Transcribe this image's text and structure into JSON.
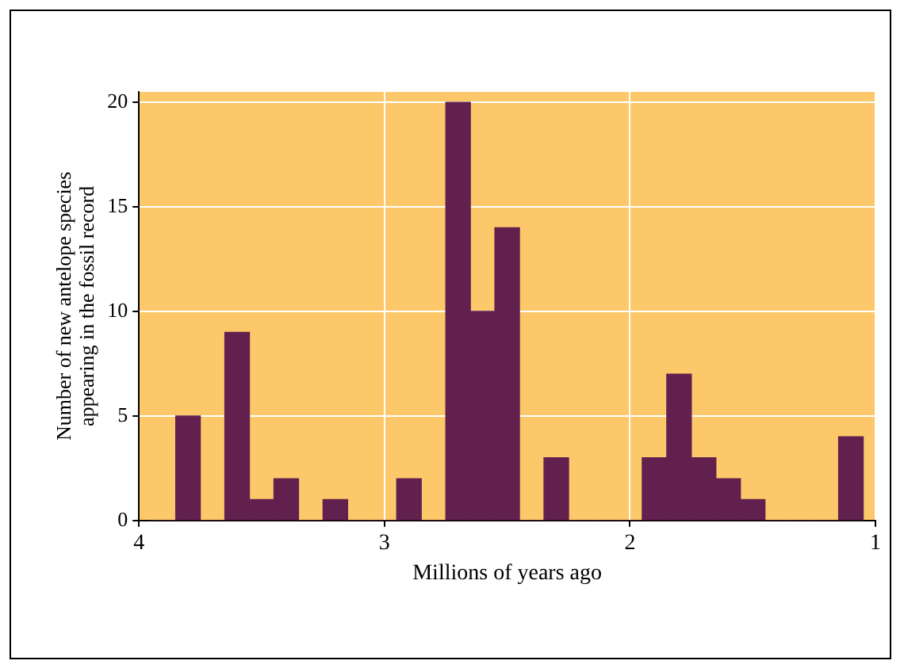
{
  "chart_data": {
    "type": "histogram",
    "xlabel": "Millions of years ago",
    "ylabel": "Number of new antelope species\nappearing in the fossil record",
    "bins": [
      3.95,
      3.85,
      3.75,
      3.65,
      3.55,
      3.45,
      3.35,
      3.25,
      3.15,
      3.05,
      2.95,
      2.85,
      2.75,
      2.65,
      2.55,
      2.45,
      2.35,
      2.25,
      2.15,
      2.05,
      1.95,
      1.85,
      1.75,
      1.65,
      1.55,
      1.45,
      1.35,
      1.25,
      1.15,
      1.05
    ],
    "values": [
      0,
      5,
      0,
      9,
      1,
      2,
      0,
      1,
      0,
      0,
      2,
      0,
      20,
      10,
      14,
      0,
      3,
      0,
      0,
      0,
      3,
      7,
      3,
      2,
      1,
      0,
      0,
      0,
      4
    ],
    "color": "#62204f",
    "xlim": [
      4,
      1
    ],
    "xticks": [
      4,
      3,
      2,
      1
    ],
    "ylim": [
      0,
      20.5
    ],
    "yticks": [
      0,
      5,
      10,
      15,
      20
    ],
    "grid": true
  }
}
